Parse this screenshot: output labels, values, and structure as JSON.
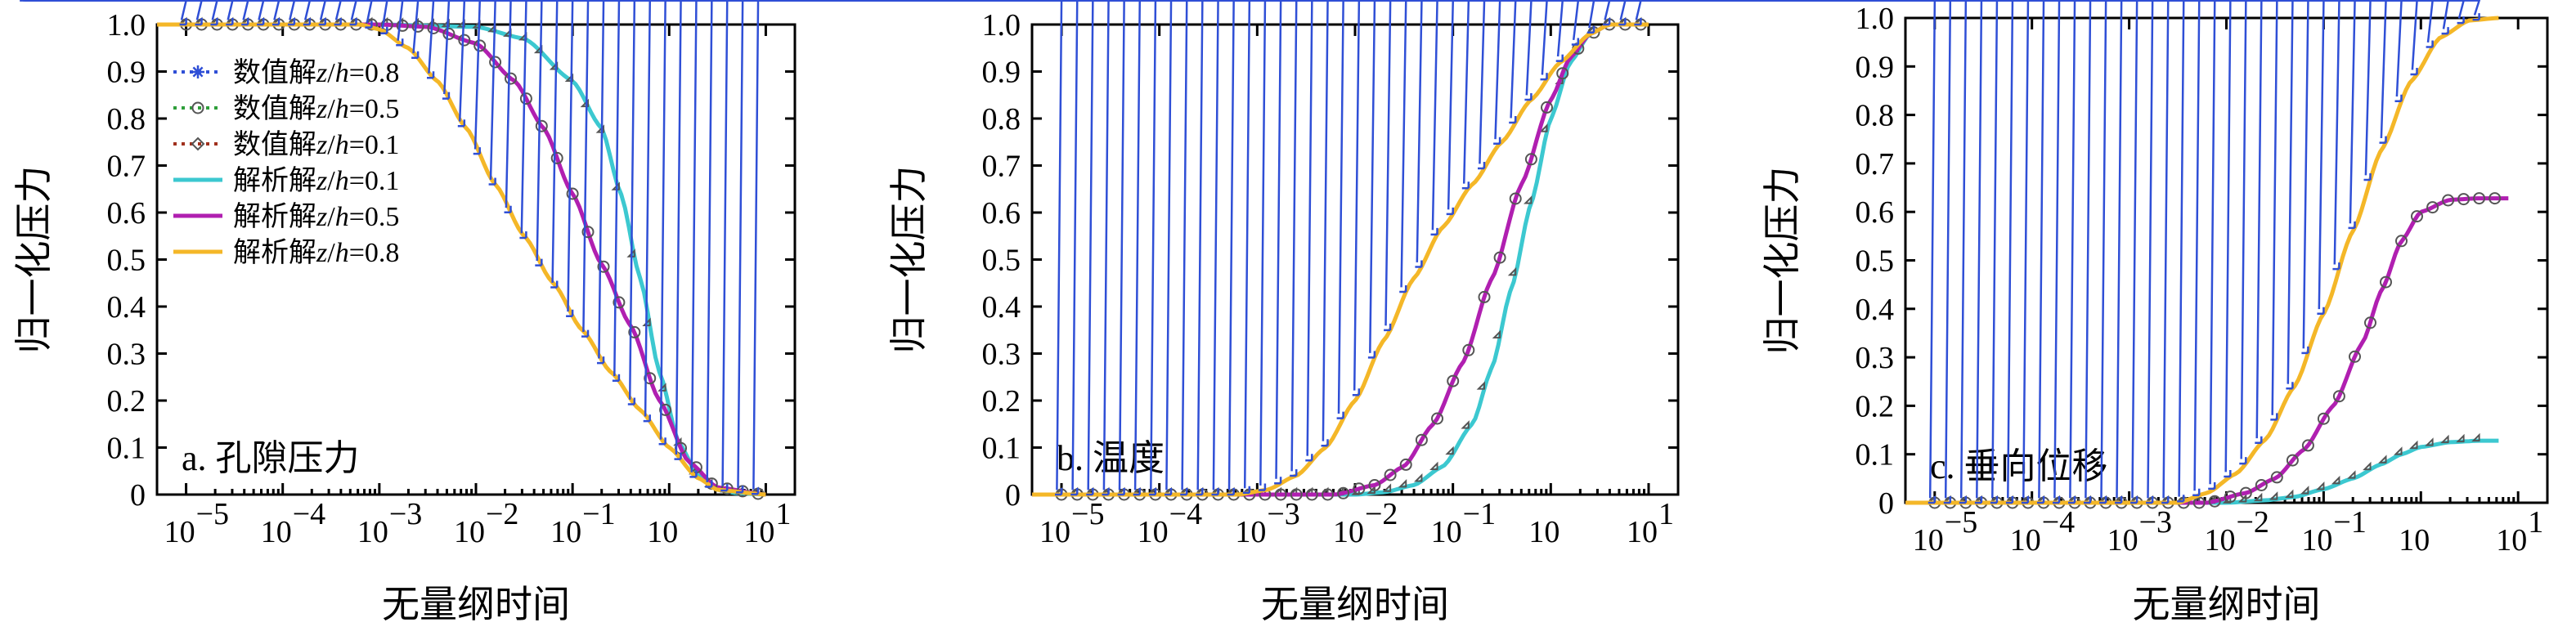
{
  "colors": {
    "num_08": "#2f4fd6",
    "num_05": "#2e9e3a",
    "num_01": "#a0301d",
    "ana_01": "#3cc8d0",
    "ana_05": "#b01fb0",
    "ana_08": "#f4b728"
  },
  "chart_data": [
    {
      "type": "line",
      "panel_label": "a. 孔隙压力",
      "xlabel": "无量纲时间",
      "ylabel": "归一化压力",
      "x_scale": "log",
      "xlim": [
        5e-06,
        20
      ],
      "ylim": [
        0,
        1
      ],
      "x_tick_labels": [
        [
          "10",
          "−5"
        ],
        [
          "10",
          "−4"
        ],
        [
          "10",
          "−3"
        ],
        [
          "10",
          "−2"
        ],
        [
          "10",
          "−1"
        ],
        [
          "10",
          ""
        ],
        [
          "10",
          "1"
        ]
      ],
      "y_tick_labels": [
        "0",
        "0.1",
        "0.2",
        "0.3",
        "0.4",
        "0.5",
        "0.6",
        "0.7",
        "0.8",
        "0.9",
        "1.0"
      ],
      "legend": [
        {
          "text": "数值解",
          "var": "z",
          "slash": "/",
          "var2": "h",
          "eq": "=0.8",
          "style": "numerical",
          "marker": "star",
          "color_key": "num_08"
        },
        {
          "text": "数值解",
          "var": "z",
          "slash": "/",
          "var2": "h",
          "eq": "=0.5",
          "style": "numerical",
          "marker": "circle",
          "color_key": "num_05"
        },
        {
          "text": "数值解",
          "var": "z",
          "slash": "/",
          "var2": "h",
          "eq": "=0.1",
          "style": "numerical",
          "marker": "diamond",
          "color_key": "num_01"
        },
        {
          "text": "解析解",
          "var": "z",
          "slash": "/",
          "var2": "h",
          "eq": "=0.1",
          "style": "analytic",
          "color_key": "ana_01"
        },
        {
          "text": "解析解",
          "var": "z",
          "slash": "/",
          "var2": "h",
          "eq": "=0.5",
          "style": "analytic",
          "color_key": "ana_05"
        },
        {
          "text": "解析解",
          "var": "z",
          "slash": "/",
          "var2": "h",
          "eq": "=0.8",
          "style": "analytic",
          "color_key": "ana_08"
        }
      ],
      "series": [
        {
          "depth": "0.1",
          "t_log10": [
            -5.3,
            -3,
            -2,
            -1.5,
            -1,
            -0.7,
            -0.5,
            -0.3,
            -0.1,
            0.1,
            0.3,
            0.5,
            0.7,
            1
          ],
          "y": [
            1,
            1,
            0.995,
            0.97,
            0.88,
            0.78,
            0.64,
            0.46,
            0.26,
            0.11,
            0.04,
            0.01,
            0.003,
            0
          ]
        },
        {
          "depth": "0.5",
          "t_log10": [
            -5.3,
            -3,
            -2.5,
            -2,
            -1.6,
            -1.3,
            -1,
            -0.7,
            -0.4,
            -0.1,
            0.2,
            0.5,
            1
          ],
          "y": [
            1,
            1,
            0.995,
            0.96,
            0.88,
            0.78,
            0.64,
            0.49,
            0.36,
            0.2,
            0.07,
            0.015,
            0
          ]
        },
        {
          "depth": "0.8",
          "t_log10": [
            -5.3,
            -3.2,
            -3,
            -2.7,
            -2.4,
            -2.1,
            -1.8,
            -1.5,
            -1.2,
            -0.9,
            -0.6,
            -0.3,
            0,
            0.3,
            0.5,
            1
          ],
          "y": [
            1,
            1,
            0.99,
            0.95,
            0.88,
            0.78,
            0.66,
            0.55,
            0.45,
            0.35,
            0.26,
            0.18,
            0.1,
            0.035,
            0.01,
            0
          ]
        }
      ]
    },
    {
      "type": "line",
      "panel_label": "b. 温度",
      "xlabel": "无量纲时间",
      "ylabel": "归一化压力",
      "x_scale": "log",
      "xlim": [
        5e-06,
        20
      ],
      "ylim": [
        0,
        1
      ],
      "x_tick_labels": [
        [
          "10",
          "−5"
        ],
        [
          "10",
          "−4"
        ],
        [
          "10",
          "−3"
        ],
        [
          "10",
          "−2"
        ],
        [
          "10",
          "−1"
        ],
        [
          "10",
          ""
        ],
        [
          "10",
          "1"
        ]
      ],
      "y_tick_labels": [
        "0",
        "0.1",
        "0.2",
        "0.3",
        "0.4",
        "0.5",
        "0.6",
        "0.7",
        "0.8",
        "0.9",
        "1.0"
      ],
      "series": [
        {
          "depth": "0.1",
          "t_log10": [
            -5.3,
            -2,
            -1.7,
            -1.4,
            -1.1,
            -0.8,
            -0.6,
            -0.4,
            -0.2,
            0,
            0.2,
            0.4,
            0.6,
            1
          ],
          "y": [
            0,
            0,
            0.005,
            0.02,
            0.06,
            0.15,
            0.27,
            0.44,
            0.62,
            0.8,
            0.92,
            0.98,
            1,
            1
          ]
        },
        {
          "depth": "0.5",
          "t_log10": [
            -5.3,
            -2.2,
            -1.8,
            -1.5,
            -1.2,
            -0.9,
            -0.6,
            -0.3,
            0,
            0.2,
            0.4,
            0.6,
            1
          ],
          "y": [
            0,
            0,
            0.02,
            0.06,
            0.15,
            0.28,
            0.46,
            0.66,
            0.84,
            0.93,
            0.98,
            1,
            1
          ]
        },
        {
          "depth": "0.8",
          "t_log10": [
            -5.3,
            -3.2,
            -2.9,
            -2.6,
            -2.3,
            -2,
            -1.7,
            -1.4,
            -1.1,
            -0.8,
            -0.5,
            -0.2,
            0.1,
            0.4,
            0.6,
            1
          ],
          "y": [
            0,
            0,
            0.01,
            0.04,
            0.1,
            0.2,
            0.33,
            0.46,
            0.57,
            0.66,
            0.75,
            0.84,
            0.92,
            0.98,
            1,
            1
          ]
        }
      ]
    },
    {
      "type": "line",
      "panel_label": "c. 垂向位移",
      "xlabel": "无量纲时间",
      "ylabel": "归一化压力",
      "x_scale": "log",
      "xlim": [
        5e-06,
        20
      ],
      "ylim": [
        0,
        1
      ],
      "x_tick_labels": [
        [
          "10",
          "−5"
        ],
        [
          "10",
          "−4"
        ],
        [
          "10",
          "−3"
        ],
        [
          "10",
          "−2"
        ],
        [
          "10",
          "−1"
        ],
        [
          "10",
          ""
        ],
        [
          "10",
          "1"
        ]
      ],
      "y_tick_labels": [
        "0",
        "0.1",
        "0.2",
        "0.3",
        "0.4",
        "0.5",
        "0.6",
        "0.7",
        "0.8",
        "0.9",
        "1.0"
      ],
      "series": [
        {
          "depth": "0.1",
          "t_log10": [
            -5.3,
            -2,
            -1.6,
            -1.3,
            -1,
            -0.7,
            -0.4,
            -0.2,
            0,
            0.3,
            0.6,
            0.8
          ],
          "y": [
            0,
            0,
            0.005,
            0.012,
            0.028,
            0.05,
            0.08,
            0.1,
            0.115,
            0.125,
            0.128,
            0.128
          ]
        },
        {
          "depth": "0.5",
          "t_log10": [
            -5.3,
            -2.2,
            -1.8,
            -1.5,
            -1.2,
            -0.9,
            -0.6,
            -0.4,
            -0.2,
            0,
            0.3,
            0.6,
            0.9
          ],
          "y": [
            0,
            0,
            0.02,
            0.05,
            0.11,
            0.2,
            0.33,
            0.44,
            0.54,
            0.6,
            0.625,
            0.628,
            0.628
          ]
        },
        {
          "depth": "0.8",
          "t_log10": [
            -5.3,
            -2.5,
            -2.2,
            -1.9,
            -1.6,
            -1.3,
            -1,
            -0.7,
            -0.4,
            -0.1,
            0.2,
            0.5,
            0.8
          ],
          "y": [
            0,
            0,
            0.02,
            0.06,
            0.13,
            0.24,
            0.39,
            0.56,
            0.73,
            0.87,
            0.96,
            0.995,
            1
          ]
        }
      ]
    }
  ]
}
